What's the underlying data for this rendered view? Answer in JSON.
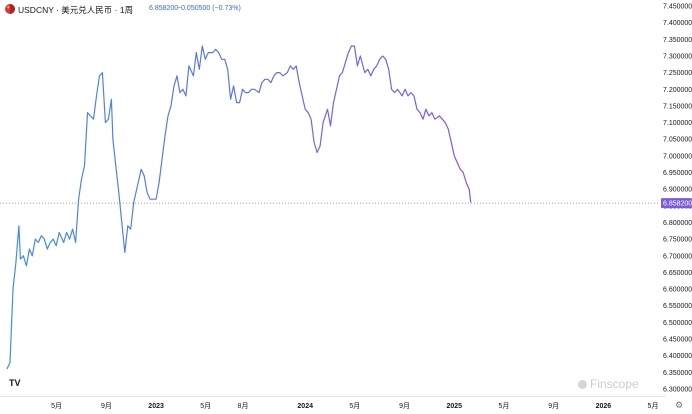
{
  "header": {
    "title": "USDCNY · 美元兑人民币 · 1周",
    "price": "6.858200",
    "change": "−0.050500 (−0.73%)"
  },
  "branding": {
    "tv_logo": "TV",
    "watermark": "Finscope",
    "settings_icon": "gear-icon"
  },
  "chart_data": {
    "type": "line",
    "title": "USDCNY · 美元兑人民币 · 1周",
    "ylim": [
      6.3,
      7.45
    ],
    "y_ticks": [
      "7.450000",
      "7.400000",
      "7.350000",
      "7.300000",
      "7.250000",
      "7.200000",
      "7.150000",
      "7.100000",
      "7.050000",
      "7.000000",
      "6.950000",
      "6.900000",
      "6.850000",
      "6.800000",
      "6.750000",
      "6.700000",
      "6.650000",
      "6.600000",
      "6.550000",
      "6.500000",
      "6.450000",
      "6.400000",
      "6.350000",
      "6.300000"
    ],
    "x_ticks": [
      {
        "label": "5月",
        "t": 0.333,
        "bold": false
      },
      {
        "label": "9月",
        "t": 0.667,
        "bold": false
      },
      {
        "label": "2023",
        "t": 1.0,
        "bold": true
      },
      {
        "label": "5月",
        "t": 1.333,
        "bold": false
      },
      {
        "label": "8月",
        "t": 1.583,
        "bold": false
      },
      {
        "label": "2024",
        "t": 2.0,
        "bold": true
      },
      {
        "label": "5月",
        "t": 2.333,
        "bold": false
      },
      {
        "label": "9月",
        "t": 2.667,
        "bold": false
      },
      {
        "label": "2025",
        "t": 3.0,
        "bold": true
      },
      {
        "label": "5月",
        "t": 3.333,
        "bold": false
      },
      {
        "label": "9月",
        "t": 3.667,
        "bold": false
      },
      {
        "label": "2026",
        "t": 4.0,
        "bold": true
      },
      {
        "label": "5月",
        "t": 4.333,
        "bold": false
      }
    ],
    "last_price": 6.8582,
    "colors": {
      "start": "#3f8fe6",
      "end": "#9c3fe0",
      "price_tag": "#7b5bd6",
      "dotted_line": "#7b6fd0"
    },
    "grid": false,
    "series": [
      {
        "points": [
          [
            0.0,
            6.36
          ],
          [
            0.02,
            6.38
          ],
          [
            0.04,
            6.6
          ],
          [
            0.06,
            6.68
          ],
          [
            0.08,
            6.79
          ],
          [
            0.09,
            6.69
          ],
          [
            0.11,
            6.7
          ],
          [
            0.13,
            6.67
          ],
          [
            0.15,
            6.72
          ],
          [
            0.17,
            6.7
          ],
          [
            0.19,
            6.75
          ],
          [
            0.21,
            6.74
          ],
          [
            0.23,
            6.76
          ],
          [
            0.25,
            6.75
          ],
          [
            0.27,
            6.72
          ],
          [
            0.29,
            6.74
          ],
          [
            0.31,
            6.75
          ],
          [
            0.33,
            6.73
          ],
          [
            0.35,
            6.77
          ],
          [
            0.38,
            6.74
          ],
          [
            0.4,
            6.77
          ],
          [
            0.42,
            6.75
          ],
          [
            0.44,
            6.78
          ],
          [
            0.46,
            6.74
          ],
          [
            0.48,
            6.87
          ],
          [
            0.5,
            6.93
          ],
          [
            0.52,
            6.97
          ],
          [
            0.54,
            7.13
          ],
          [
            0.56,
            7.12
          ],
          [
            0.58,
            7.11
          ],
          [
            0.6,
            7.18
          ],
          [
            0.62,
            7.24
          ],
          [
            0.64,
            7.25
          ],
          [
            0.66,
            7.1
          ],
          [
            0.68,
            7.11
          ],
          [
            0.7,
            7.17
          ],
          [
            0.71,
            7.05
          ],
          [
            0.73,
            6.97
          ],
          [
            0.75,
            6.89
          ],
          [
            0.77,
            6.8
          ],
          [
            0.79,
            6.71
          ],
          [
            0.81,
            6.79
          ],
          [
            0.83,
            6.78
          ],
          [
            0.85,
            6.86
          ],
          [
            0.87,
            6.9
          ],
          [
            0.9,
            6.96
          ],
          [
            0.92,
            6.94
          ],
          [
            0.94,
            6.89
          ],
          [
            0.96,
            6.87
          ],
          [
            1.0,
            6.87
          ],
          [
            1.02,
            6.92
          ],
          [
            1.06,
            7.06
          ],
          [
            1.08,
            7.12
          ],
          [
            1.1,
            7.15
          ],
          [
            1.12,
            7.21
          ],
          [
            1.14,
            7.24
          ],
          [
            1.16,
            7.19
          ],
          [
            1.18,
            7.2
          ],
          [
            1.2,
            7.18
          ],
          [
            1.22,
            7.27
          ],
          [
            1.25,
            7.24
          ],
          [
            1.27,
            7.31
          ],
          [
            1.29,
            7.26
          ],
          [
            1.31,
            7.33
          ],
          [
            1.33,
            7.29
          ],
          [
            1.35,
            7.31
          ],
          [
            1.38,
            7.31
          ],
          [
            1.4,
            7.32
          ],
          [
            1.42,
            7.31
          ],
          [
            1.44,
            7.29
          ],
          [
            1.46,
            7.29
          ],
          [
            1.48,
            7.26
          ],
          [
            1.5,
            7.17
          ],
          [
            1.52,
            7.21
          ],
          [
            1.54,
            7.16
          ],
          [
            1.56,
            7.16
          ],
          [
            1.58,
            7.2
          ],
          [
            1.6,
            7.19
          ],
          [
            1.62,
            7.19
          ],
          [
            1.64,
            7.2
          ],
          [
            1.66,
            7.2
          ],
          [
            1.69,
            7.19
          ],
          [
            1.71,
            7.22
          ],
          [
            1.73,
            7.23
          ],
          [
            1.75,
            7.23
          ],
          [
            1.77,
            7.22
          ],
          [
            1.79,
            7.24
          ],
          [
            1.81,
            7.25
          ],
          [
            1.83,
            7.25
          ],
          [
            1.85,
            7.24
          ],
          [
            1.88,
            7.25
          ],
          [
            1.9,
            7.27
          ],
          [
            1.92,
            7.26
          ],
          [
            1.94,
            7.27
          ],
          [
            1.96,
            7.22
          ],
          [
            1.98,
            7.18
          ],
          [
            2.0,
            7.14
          ],
          [
            2.02,
            7.13
          ],
          [
            2.04,
            7.11
          ],
          [
            2.06,
            7.04
          ],
          [
            2.08,
            7.01
          ],
          [
            2.1,
            7.03
          ],
          [
            2.12,
            7.1
          ],
          [
            2.15,
            7.14
          ],
          [
            2.17,
            7.09
          ],
          [
            2.19,
            7.16
          ],
          [
            2.21,
            7.2
          ],
          [
            2.23,
            7.24
          ],
          [
            2.25,
            7.25
          ],
          [
            2.27,
            7.28
          ],
          [
            2.29,
            7.31
          ],
          [
            2.31,
            7.33
          ],
          [
            2.33,
            7.33
          ],
          [
            2.35,
            7.27
          ],
          [
            2.37,
            7.3
          ],
          [
            2.4,
            7.25
          ],
          [
            2.42,
            7.26
          ],
          [
            2.44,
            7.24
          ],
          [
            2.46,
            7.26
          ],
          [
            2.48,
            7.27
          ],
          [
            2.5,
            7.29
          ],
          [
            2.52,
            7.3
          ],
          [
            2.54,
            7.29
          ],
          [
            2.56,
            7.26
          ],
          [
            2.58,
            7.2
          ],
          [
            2.6,
            7.19
          ],
          [
            2.62,
            7.2
          ],
          [
            2.65,
            7.18
          ],
          [
            2.67,
            7.2
          ],
          [
            2.69,
            7.18
          ],
          [
            2.71,
            7.19
          ],
          [
            2.73,
            7.18
          ],
          [
            2.75,
            7.14
          ],
          [
            2.77,
            7.13
          ],
          [
            2.79,
            7.11
          ],
          [
            2.81,
            7.14
          ],
          [
            2.83,
            7.12
          ],
          [
            2.85,
            7.13
          ],
          [
            2.87,
            7.11
          ],
          [
            2.9,
            7.12
          ],
          [
            2.92,
            7.11
          ],
          [
            2.94,
            7.1
          ],
          [
            2.96,
            7.08
          ],
          [
            2.98,
            7.04
          ],
          [
            3.0,
            7.0
          ],
          [
            3.02,
            6.98
          ],
          [
            3.04,
            6.96
          ],
          [
            3.06,
            6.95
          ],
          [
            3.08,
            6.92
          ],
          [
            3.1,
            6.9
          ],
          [
            3.11,
            6.86
          ]
        ]
      }
    ]
  }
}
